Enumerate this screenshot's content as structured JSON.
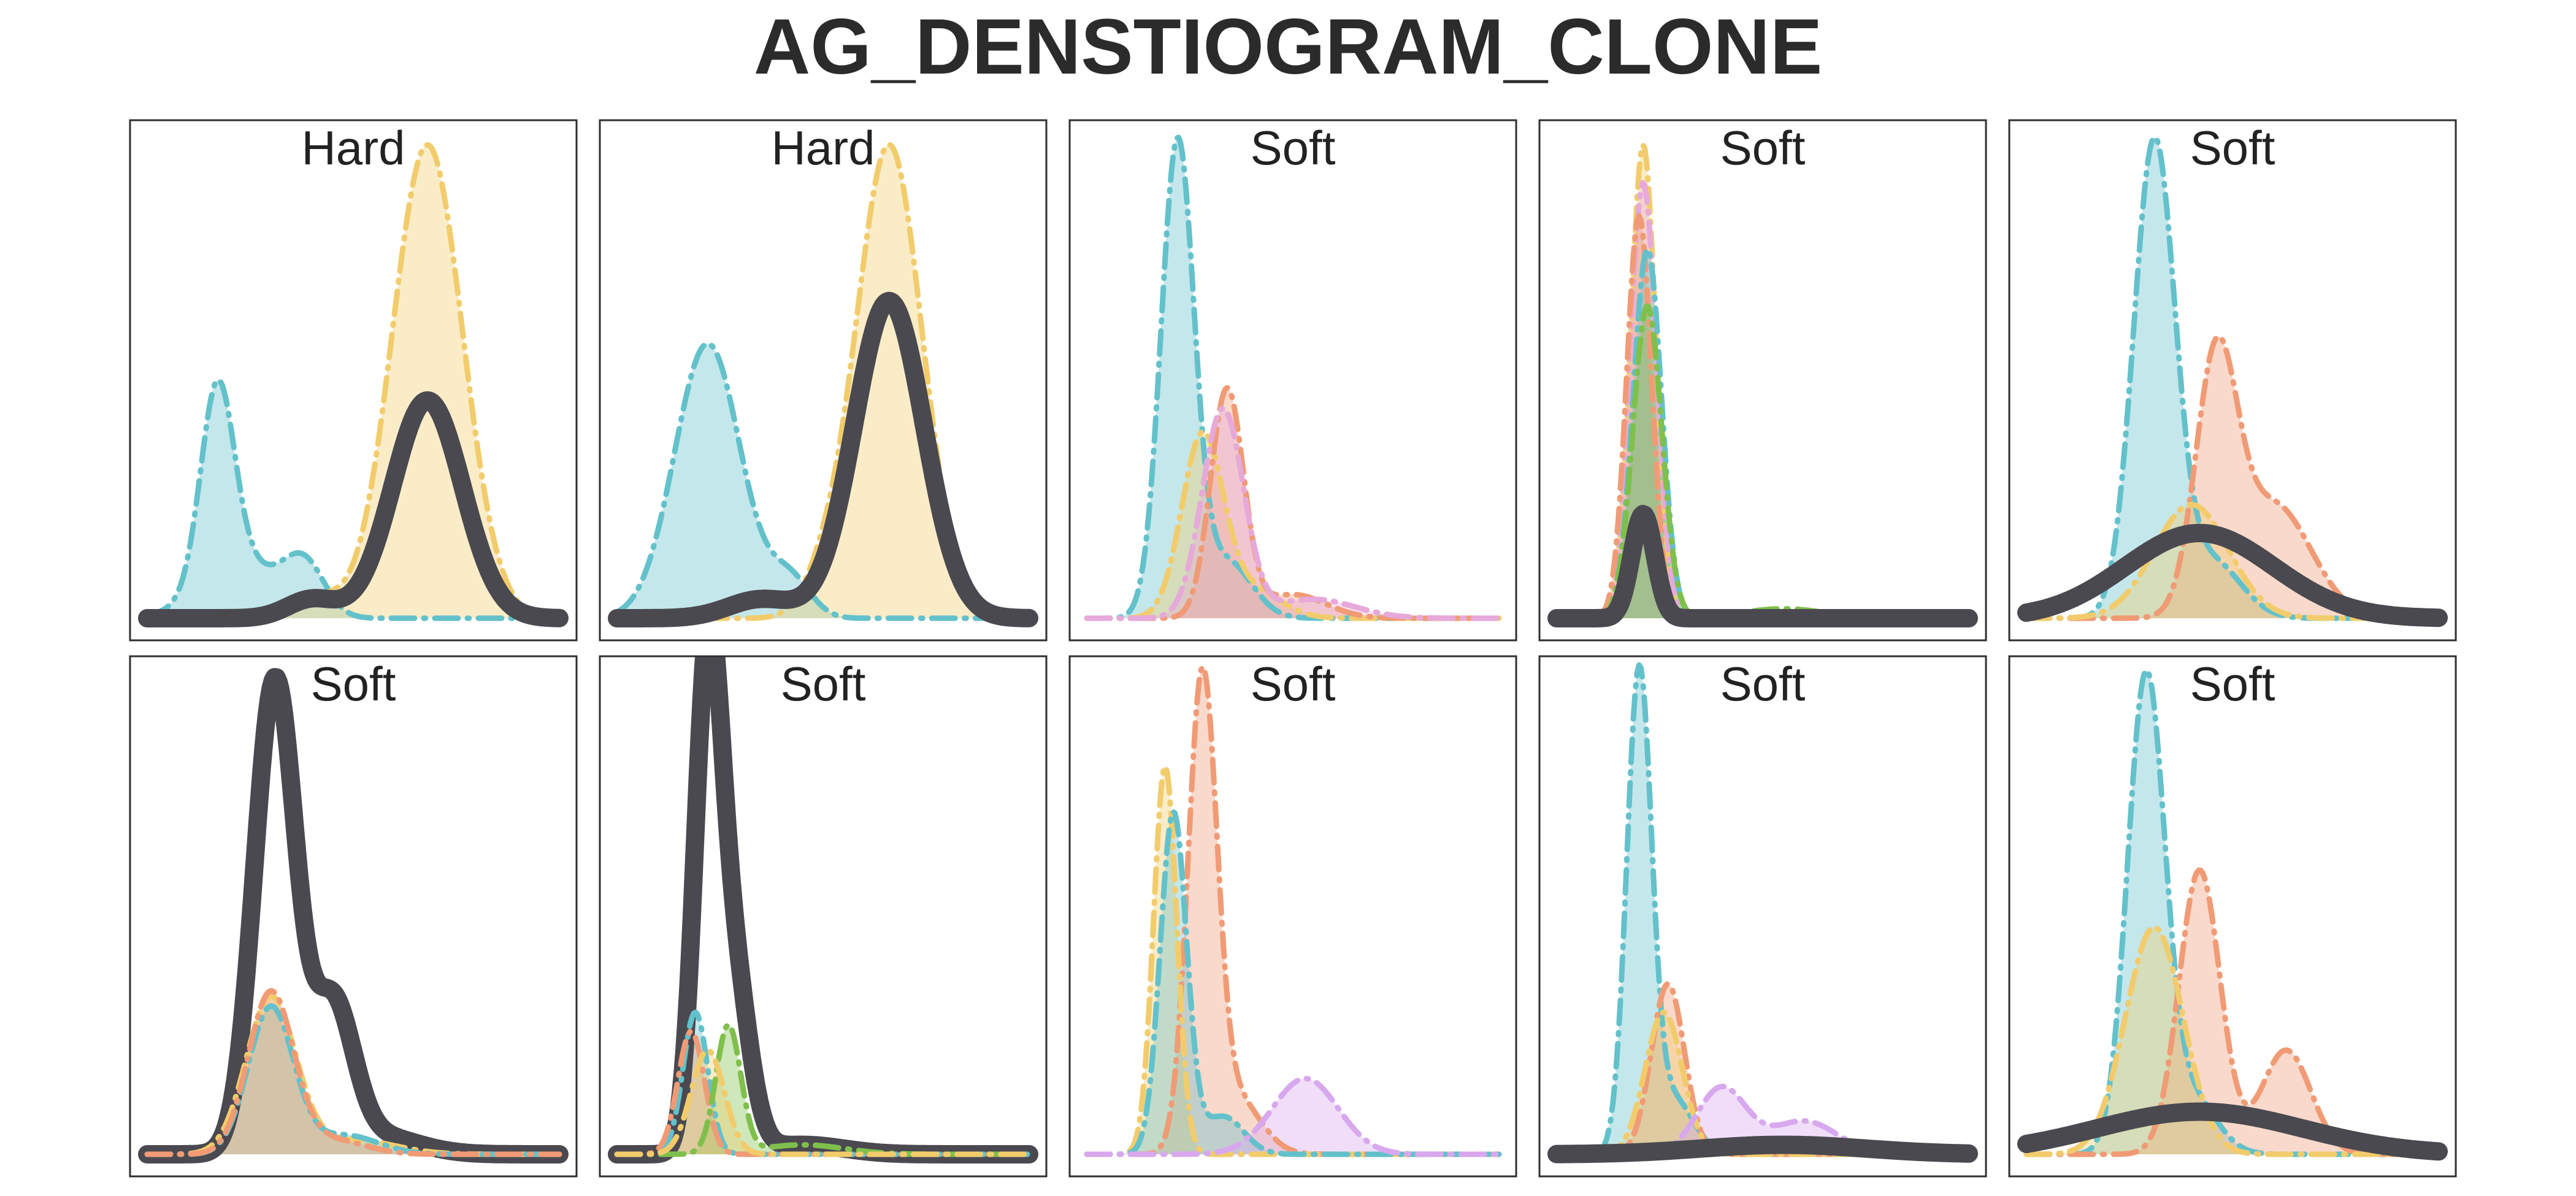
{
  "chart_data": {
    "type": "area",
    "title": "AG_DENSTIOGRAM_CLONE",
    "grid": false,
    "x_range": [
      0,
      1
    ],
    "y_range": [
      0,
      1
    ],
    "legend": "none",
    "series_styles": {
      "thick": {
        "color": "#4a4950",
        "dash": "solid"
      },
      "teal": {
        "color": "#63c1cb",
        "dash": "dashdot"
      },
      "yellow": {
        "color": "#f2cc6c",
        "dash": "dashdot"
      },
      "salmon": {
        "color": "#f09b75",
        "dash": "dashdot"
      },
      "pink": {
        "color": "#e7a9d9",
        "dash": "dashdot"
      },
      "violet": {
        "color": "#d8a8ee",
        "dash": "dashdot"
      },
      "green": {
        "color": "#7fc04c",
        "dash": "dashdot"
      }
    },
    "panels": [
      {
        "label": "Hard",
        "series": [
          {
            "style": "teal",
            "fill": true,
            "peaks": [
              [
                0.17,
                0.4,
                0.04
              ],
              [
                0.22,
                0.12,
                0.09
              ],
              [
                0.38,
                0.11,
                0.05
              ]
            ]
          },
          {
            "style": "yellow",
            "fill": true,
            "peaks": [
              [
                0.68,
                1.0,
                0.085
              ],
              [
                0.42,
                0.04,
                0.05
              ]
            ]
          },
          {
            "style": "thick",
            "fill": false,
            "peaks": [
              [
                0.68,
                0.46,
                0.085
              ],
              [
                0.4,
                0.04,
                0.06
              ]
            ]
          }
        ]
      },
      {
        "label": "Hard",
        "series": [
          {
            "style": "teal",
            "fill": true,
            "peaks": [
              [
                0.22,
                0.58,
                0.08
              ],
              [
                0.42,
                0.08,
                0.05
              ]
            ]
          },
          {
            "style": "yellow",
            "fill": true,
            "peaks": [
              [
                0.66,
                1.0,
                0.08
              ],
              [
                0.5,
                0.06,
                0.05
              ]
            ]
          },
          {
            "style": "thick",
            "fill": false,
            "peaks": [
              [
                0.66,
                0.67,
                0.085
              ],
              [
                0.35,
                0.04,
                0.08
              ]
            ]
          }
        ]
      },
      {
        "label": "Soft",
        "series": [
          {
            "style": "teal",
            "fill": true,
            "peaks": [
              [
                0.22,
                1.0,
                0.04
              ],
              [
                0.34,
                0.12,
                0.06
              ]
            ]
          },
          {
            "style": "yellow",
            "fill": true,
            "peaks": [
              [
                0.28,
                0.38,
                0.05
              ],
              [
                0.4,
                0.06,
                0.07
              ]
            ]
          },
          {
            "style": "salmon",
            "fill": true,
            "peaks": [
              [
                0.34,
                0.48,
                0.04
              ],
              [
                0.5,
                0.05,
                0.08
              ]
            ]
          },
          {
            "style": "pink",
            "fill": true,
            "peaks": [
              [
                0.33,
                0.44,
                0.05
              ],
              [
                0.55,
                0.04,
                0.1
              ]
            ]
          }
        ]
      },
      {
        "label": "Soft",
        "series": [
          {
            "style": "yellow",
            "fill": true,
            "peaks": [
              [
                0.21,
                1.0,
                0.03
              ]
            ]
          },
          {
            "style": "pink",
            "fill": true,
            "peaks": [
              [
                0.21,
                0.92,
                0.032
              ]
            ]
          },
          {
            "style": "salmon",
            "fill": true,
            "peaks": [
              [
                0.2,
                0.85,
                0.03
              ]
            ]
          },
          {
            "style": "teal",
            "fill": true,
            "peaks": [
              [
                0.22,
                0.78,
                0.034
              ]
            ]
          },
          {
            "style": "green",
            "fill": true,
            "peaks": [
              [
                0.22,
                0.66,
                0.035
              ],
              [
                0.55,
                0.02,
                0.1
              ]
            ]
          },
          {
            "style": "thick",
            "fill": false,
            "peaks": [
              [
                0.21,
                0.22,
                0.028
              ]
            ]
          }
        ]
      },
      {
        "label": "Soft",
        "series": [
          {
            "style": "teal",
            "fill": true,
            "peaks": [
              [
                0.31,
                1.0,
                0.05
              ],
              [
                0.45,
                0.12,
                0.07
              ]
            ]
          },
          {
            "style": "salmon",
            "fill": true,
            "peaks": [
              [
                0.46,
                0.52,
                0.05
              ],
              [
                0.6,
                0.24,
                0.09
              ]
            ]
          },
          {
            "style": "yellow",
            "fill": true,
            "peaks": [
              [
                0.4,
                0.24,
                0.09
              ]
            ]
          },
          {
            "style": "thick",
            "fill": false,
            "peaks": [
              [
                0.42,
                0.18,
                0.18
              ]
            ]
          }
        ]
      },
      {
        "label": "Soft",
        "series": [
          {
            "style": "thick",
            "fill": false,
            "peaks": [
              [
                0.31,
                1.0,
                0.05
              ],
              [
                0.45,
                0.3,
                0.05
              ],
              [
                0.55,
                0.04,
                0.1
              ]
            ]
          },
          {
            "style": "yellow",
            "fill": true,
            "peaks": [
              [
                0.3,
                0.33,
                0.06
              ],
              [
                0.5,
                0.03,
                0.1
              ]
            ]
          },
          {
            "style": "teal",
            "fill": true,
            "peaks": [
              [
                0.3,
                0.31,
                0.055
              ],
              [
                0.48,
                0.04,
                0.08
              ]
            ]
          },
          {
            "style": "salmon",
            "fill": true,
            "peaks": [
              [
                0.3,
                0.34,
                0.055
              ],
              [
                0.45,
                0.03,
                0.08
              ]
            ]
          }
        ]
      },
      {
        "label": "Soft",
        "series": [
          {
            "style": "thick",
            "fill": false,
            "peaks": [
              [
                0.22,
                1.0,
                0.032
              ],
              [
                0.28,
                0.38,
                0.04
              ],
              [
                0.45,
                0.02,
                0.1
              ]
            ]
          },
          {
            "style": "teal",
            "fill": true,
            "peaks": [
              [
                0.19,
                0.3,
                0.03
              ]
            ]
          },
          {
            "style": "salmon",
            "fill": true,
            "peaks": [
              [
                0.18,
                0.26,
                0.032
              ]
            ]
          },
          {
            "style": "green",
            "fill": true,
            "peaks": [
              [
                0.27,
                0.27,
                0.03
              ],
              [
                0.45,
                0.02,
                0.1
              ]
            ]
          },
          {
            "style": "yellow",
            "fill": true,
            "peaks": [
              [
                0.22,
                0.22,
                0.04
              ]
            ]
          }
        ]
      },
      {
        "label": "Soft",
        "series": [
          {
            "style": "salmon",
            "fill": true,
            "peaks": [
              [
                0.28,
                0.98,
                0.035
              ],
              [
                0.36,
                0.12,
                0.06
              ]
            ]
          },
          {
            "style": "yellow",
            "fill": true,
            "peaks": [
              [
                0.19,
                0.82,
                0.028
              ]
            ]
          },
          {
            "style": "teal",
            "fill": true,
            "peaks": [
              [
                0.21,
                0.72,
                0.032
              ],
              [
                0.33,
                0.08,
                0.05
              ]
            ]
          },
          {
            "style": "violet",
            "fill": true,
            "peaks": [
              [
                0.53,
                0.16,
                0.08
              ]
            ]
          }
        ]
      },
      {
        "label": "Soft",
        "series": [
          {
            "style": "teal",
            "fill": true,
            "peaks": [
              [
                0.2,
                1.0,
                0.03
              ],
              [
                0.28,
                0.12,
                0.05
              ]
            ]
          },
          {
            "style": "salmon",
            "fill": true,
            "peaks": [
              [
                0.27,
                0.36,
                0.04
              ]
            ]
          },
          {
            "style": "yellow",
            "fill": true,
            "peaks": [
              [
                0.26,
                0.3,
                0.045
              ]
            ]
          },
          {
            "style": "violet",
            "fill": true,
            "peaks": [
              [
                0.4,
                0.14,
                0.06
              ],
              [
                0.6,
                0.07,
                0.08
              ]
            ]
          },
          {
            "style": "thick",
            "fill": false,
            "peaks": [
              [
                0.55,
                0.02,
                0.2
              ]
            ]
          }
        ]
      },
      {
        "label": "Soft",
        "series": [
          {
            "style": "teal",
            "fill": true,
            "peaks": [
              [
                0.29,
                1.0,
                0.045
              ],
              [
                0.4,
                0.12,
                0.06
              ]
            ]
          },
          {
            "style": "salmon",
            "fill": true,
            "peaks": [
              [
                0.42,
                0.6,
                0.05
              ],
              [
                0.63,
                0.22,
                0.06
              ]
            ]
          },
          {
            "style": "yellow",
            "fill": true,
            "peaks": [
              [
                0.31,
                0.48,
                0.07
              ]
            ]
          },
          {
            "style": "thick",
            "fill": false,
            "peaks": [
              [
                0.42,
                0.09,
                0.25
              ]
            ]
          }
        ]
      }
    ]
  }
}
